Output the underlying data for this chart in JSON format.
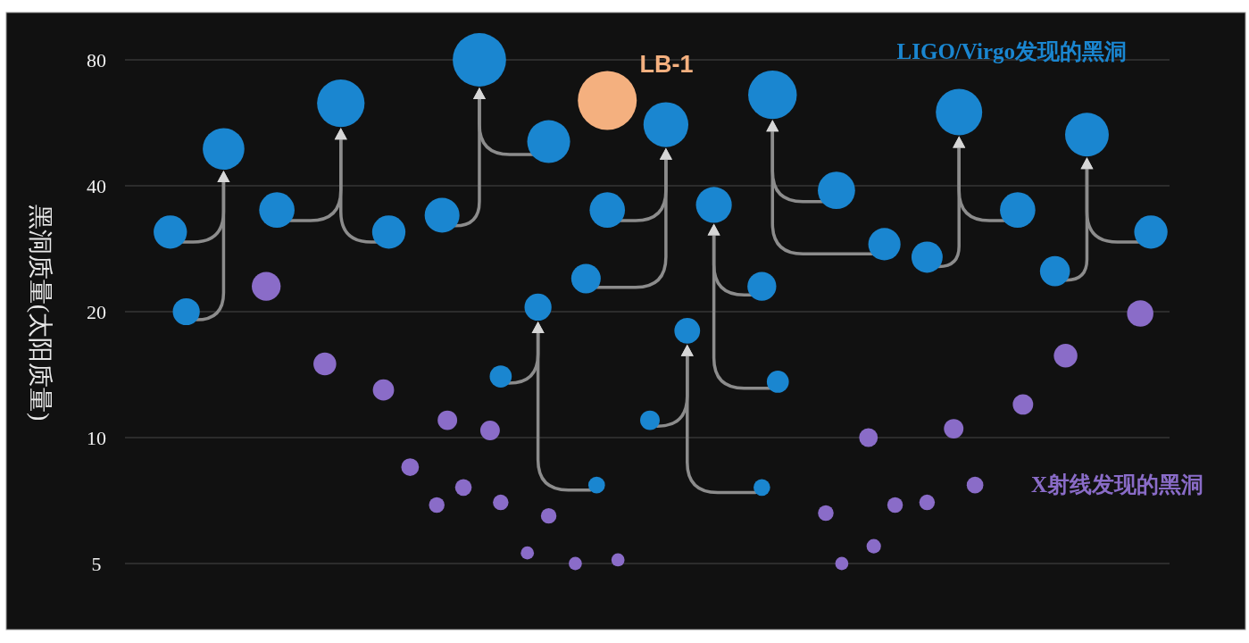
{
  "chart_data": {
    "type": "bubble",
    "log": true,
    "grid": "y",
    "tick_labels": "y",
    "marker": "circle",
    "ylabel": "黑洞质量(太阳质量)",
    "ylim": [
      5,
      80
    ],
    "yticks": [
      5,
      10,
      20,
      40,
      80
    ],
    "categories": [
      null,
      null,
      null,
      null,
      null,
      null,
      null,
      null,
      null,
      null,
      null,
      null,
      null,
      null,
      null,
      null,
      null,
      null,
      null,
      null,
      null,
      null,
      null,
      null,
      null,
      null,
      null,
      null,
      null,
      null,
      null,
      null,
      null,
      null,
      null,
      null,
      null,
      null,
      null,
      null,
      null,
      null,
      null,
      null,
      null,
      null,
      null,
      null,
      null,
      null,
      null,
      null,
      null,
      null,
      null,
      null,
      null,
      null,
      null,
      null,
      null,
      null,
      null,
      null,
      null,
      null,
      null,
      null,
      null,
      null,
      null,
      null,
      null,
      null,
      null,
      null,
      null,
      null,
      null,
      null,
      null,
      null,
      null,
      null,
      null,
      null,
      null,
      null,
      null,
      null,
      null,
      null,
      null,
      null,
      null,
      null,
      null,
      null,
      null,
      null,
      null,
      null,
      null,
      null,
      null,
      null,
      null,
      null,
      null,
      null,
      null,
      null,
      null,
      null,
      null,
      null,
      null,
      null,
      null,
      null,
      null,
      null,
      null,
      null,
      null,
      null,
      null,
      null,
      null,
      null,
      null,
      null,
      null,
      null,
      null,
      null,
      null,
      null,
      null,
      null,
      null,
      null,
      null,
      null,
      null,
      null,
      null,
      null,
      null,
      null,
      null,
      null,
      null,
      null,
      null,
      null,
      null,
      null,
      null,
      null,
      null,
      null,
      null,
      null,
      null,
      null,
      null,
      null,
      null,
      null,
      null,
      null,
      null,
      null,
      null,
      null,
      null,
      null,
      null,
      null,
      null,
      null,
      null,
      null,
      null,
      null,
      null,
      null,
      null,
      null,
      null,
      null,
      null,
      null,
      null,
      null
    ],
    "series": [
      {
        "name": "LIGO/Virgo发现的黑洞",
        "color": "#1a86d0",
        "values": [
          null,
          null,
          null,
          null,
          null,
          null,
          null,
          null,
          null,
          null,
          null,
          null,
          null,
          null,
          null,
          null,
          null,
          null,
          49,
          null,
          null,
          null,
          null,
          null,
          null,
          null,
          null,
          null,
          null,
          null,
          null,
          null,
          null,
          null,
          null,
          null,
          null,
          null,
          null,
          null,
          63,
          null,
          null,
          null,
          null,
          null,
          null,
          null,
          null,
          null,
          null,
          null,
          null,
          null,
          null,
          null,
          null,
          null,
          null,
          null,
          null,
          null,
          null,
          null,
          null,
          null,
          80,
          null,
          null,
          null,
          null,
          null,
          null,
          null,
          null,
          null,
          null,
          20.5,
          null,
          null,
          null,
          null,
          null,
          null,
          null,
          null,
          null,
          null,
          null,
          null,
          null,
          null,
          null,
          null,
          null,
          null,
          null,
          null,
          null,
          null,
          null,
          56,
          null,
          null,
          null,
          18,
          null,
          null,
          null,
          null,
          36,
          null,
          null,
          null,
          null,
          null,
          null,
          null,
          null,
          null,
          null,
          66,
          null,
          null,
          null,
          null,
          null,
          null,
          null,
          null,
          null,
          null,
          null,
          null,
          null,
          null,
          null,
          null,
          null,
          null,
          null,
          null,
          null,
          null,
          null,
          null,
          null,
          null,
          null,
          null,
          null,
          null,
          null,
          null,
          null,
          null,
          60,
          null,
          null,
          null,
          null,
          null,
          null,
          null,
          null,
          null,
          null,
          null,
          null,
          null,
          null,
          null,
          null,
          null,
          null,
          null,
          null,
          null,
          null,
          null,
          53,
          null,
          null,
          null,
          null,
          null,
          null,
          null,
          null,
          null,
          null,
          null,
          null,
          null,
          null,
          null
        ],
        "sizes": [
          null,
          null,
          null,
          null,
          null,
          null,
          null,
          null,
          null,
          null,
          null,
          null,
          null,
          null,
          null,
          null,
          null,
          null,
          0.5,
          null,
          null,
          null,
          null,
          null,
          null,
          null,
          null,
          null,
          null,
          null,
          null,
          null,
          null,
          null,
          null,
          null,
          null,
          null,
          null,
          null,
          0.65,
          null,
          null,
          null,
          null,
          null,
          null,
          null,
          null,
          null,
          null,
          null,
          null,
          null,
          null,
          null,
          null,
          null,
          null,
          null,
          null,
          null,
          null,
          null,
          null,
          null,
          0.82,
          null,
          null,
          null,
          null,
          null,
          null,
          null,
          null,
          null,
          null,
          0.21,
          null,
          null,
          null,
          null,
          null,
          null,
          null,
          null,
          null,
          null,
          null,
          null,
          null,
          null,
          null,
          null,
          null,
          null,
          null,
          null,
          null,
          null,
          null,
          0.58,
          null,
          null,
          null,
          0.19,
          null,
          null,
          null,
          null,
          0.37,
          null,
          null,
          null,
          null,
          null,
          null,
          null,
          null,
          null,
          null,
          0.68,
          null,
          null,
          null,
          null,
          null,
          null,
          null,
          null,
          null,
          null,
          null,
          null,
          null,
          null,
          null,
          null,
          null,
          null,
          null,
          null,
          null,
          null,
          null,
          null,
          null,
          null,
          null,
          null,
          null,
          null,
          null,
          null,
          null,
          null,
          0.62,
          null,
          null,
          null,
          null,
          null,
          null,
          null,
          null,
          null,
          null,
          null,
          null,
          null,
          null,
          null,
          null,
          null,
          null,
          null,
          null,
          null,
          null,
          null,
          0.55,
          null,
          null,
          null,
          null,
          null,
          null,
          null,
          null,
          null,
          null,
          null,
          null,
          null,
          null,
          null
        ]
      },
      {
        "color": "#1a86d0",
        "values": [
          null,
          null,
          null,
          null,
          null,
          null,
          null,
          null,
          31,
          null,
          null,
          null,
          null,
          null,
          null,
          null,
          null,
          null,
          null,
          null,
          null,
          null,
          null,
          null,
          null,
          null,
          null,
          null,
          35,
          null,
          null,
          null,
          null,
          null,
          null,
          null,
          null,
          null,
          null,
          null,
          null,
          null,
          null,
          null,
          null,
          null,
          null,
          null,
          null,
          null,
          null,
          null,
          null,
          null,
          null,
          null,
          null,
          null,
          null,
          34,
          null,
          null,
          null,
          null,
          null,
          null,
          null,
          null,
          null,
          null,
          14,
          null,
          null,
          null,
          null,
          null,
          null,
          null,
          null,
          null,
          null,
          null,
          null,
          null,
          null,
          null,
          24,
          null,
          null,
          null,
          null,
          null,
          null,
          null,
          null,
          null,
          null,
          null,
          11,
          null,
          null,
          null,
          null,
          null,
          null,
          null,
          null,
          null,
          null,
          null,
          null,
          null,
          null,
          null,
          null,
          null,
          null,
          null,
          null,
          23,
          null,
          null,
          null,
          null,
          null,
          null,
          null,
          null,
          null,
          null,
          null,
          null,
          null,
          39,
          null,
          null,
          null,
          null,
          null,
          null,
          null,
          null,
          null,
          null,
          null,
          null,
          null,
          null,
          null,
          null,
          27,
          null,
          null,
          null,
          null,
          null,
          null,
          null,
          null,
          null,
          null,
          null,
          null,
          null,
          null,
          null,
          null,
          null,
          null,
          null,
          null,
          null,
          null,
          null,
          25,
          null,
          null,
          null,
          null,
          null,
          null,
          null,
          null,
          null,
          null,
          null,
          null,
          null,
          null,
          null,
          null,
          null,
          null,
          null,
          null,
          null
        ],
        "sizes": [
          null,
          null,
          null,
          null,
          null,
          null,
          null,
          null,
          0.32,
          null,
          null,
          null,
          null,
          null,
          null,
          null,
          null,
          null,
          null,
          null,
          null,
          null,
          null,
          null,
          null,
          null,
          null,
          null,
          0.36,
          null,
          null,
          null,
          null,
          null,
          null,
          null,
          null,
          null,
          null,
          null,
          null,
          null,
          null,
          null,
          null,
          null,
          null,
          null,
          null,
          null,
          null,
          null,
          null,
          null,
          null,
          null,
          null,
          null,
          null,
          0.35,
          null,
          null,
          null,
          null,
          null,
          null,
          null,
          null,
          null,
          null,
          0.14,
          null,
          null,
          null,
          null,
          null,
          null,
          null,
          null,
          null,
          null,
          null,
          null,
          null,
          null,
          null,
          0.25,
          null,
          null,
          null,
          null,
          null,
          null,
          null,
          null,
          null,
          null,
          null,
          0.11,
          null,
          null,
          null,
          null,
          null,
          null,
          null,
          null,
          null,
          null,
          null,
          null,
          null,
          null,
          null,
          null,
          null,
          null,
          null,
          null,
          0.24,
          null,
          null,
          null,
          null,
          null,
          null,
          null,
          null,
          null,
          null,
          null,
          null,
          null,
          0.4,
          null,
          null,
          null,
          null,
          null,
          null,
          null,
          null,
          null,
          null,
          null,
          null,
          null,
          null,
          null,
          null,
          0.28,
          null,
          null,
          null,
          null,
          null,
          null,
          null,
          null,
          null,
          null,
          null,
          null,
          null,
          null,
          null,
          null,
          null,
          null,
          null,
          null,
          null,
          null,
          null,
          0.26,
          null,
          null,
          null,
          null,
          null,
          null,
          null,
          null,
          null,
          null,
          null,
          null,
          null,
          null,
          null,
          null,
          null,
          null,
          null,
          null,
          null
        ]
      },
      {
        "color": "#1a86d0",
        "values": [
          null,
          null,
          null,
          null,
          null,
          null,
          null,
          null,
          null,
          null,
          null,
          20,
          null,
          null,
          null,
          null,
          null,
          null,
          null,
          null,
          null,
          null,
          null,
          null,
          null,
          null,
          null,
          null,
          null,
          null,
          null,
          null,
          null,
          null,
          null,
          null,
          null,
          null,
          null,
          null,
          null,
          null,
          null,
          null,
          null,
          null,
          null,
          null,
          null,
          31,
          null,
          null,
          null,
          null,
          null,
          null,
          null,
          null,
          null,
          null,
          null,
          null,
          null,
          null,
          null,
          null,
          null,
          null,
          null,
          null,
          null,
          null,
          null,
          null,
          null,
          null,
          null,
          null,
          null,
          51,
          null,
          null,
          null,
          null,
          null,
          null,
          null,
          null,
          7.7,
          null,
          35,
          null,
          null,
          null,
          null,
          null,
          null,
          null,
          null,
          null,
          null,
          null,
          null,
          null,
          null,
          null,
          null,
          null,
          null,
          null,
          null,
          null,
          null,
          null,
          null,
          null,
          null,
          null,
          null,
          7.6,
          null,
          null,
          13.6,
          null,
          null,
          null,
          null,
          null,
          null,
          null,
          null,
          null,
          null,
          null,
          null,
          null,
          null,
          null,
          null,
          null,
          null,
          null,
          29,
          null,
          null,
          null,
          null,
          null,
          null,
          null,
          null,
          null,
          null,
          null,
          null,
          null,
          null,
          null,
          null,
          null,
          null,
          null,
          null,
          null,
          null,
          null,
          null,
          35,
          null,
          null,
          null,
          null,
          null,
          null,
          null,
          null,
          null,
          null,
          null,
          null,
          null,
          null,
          null,
          null,
          null,
          null,
          null,
          null,
          null,
          null,
          null,
          null,
          31,
          null,
          null,
          null
        ],
        "sizes": [
          null,
          null,
          null,
          null,
          null,
          null,
          null,
          null,
          null,
          null,
          null,
          0.21,
          null,
          null,
          null,
          null,
          null,
          null,
          null,
          null,
          null,
          null,
          null,
          null,
          null,
          null,
          null,
          null,
          null,
          null,
          null,
          null,
          null,
          null,
          null,
          null,
          null,
          null,
          null,
          null,
          null,
          null,
          null,
          null,
          null,
          null,
          null,
          null,
          null,
          0.32,
          null,
          null,
          null,
          null,
          null,
          null,
          null,
          null,
          null,
          null,
          null,
          null,
          null,
          null,
          null,
          null,
          null,
          null,
          null,
          null,
          null,
          null,
          null,
          null,
          null,
          null,
          null,
          null,
          null,
          0.53,
          null,
          null,
          null,
          null,
          null,
          null,
          null,
          null,
          0.08,
          null,
          0.36,
          null,
          null,
          null,
          null,
          null,
          null,
          null,
          null,
          null,
          null,
          null,
          null,
          null,
          null,
          null,
          null,
          null,
          null,
          null,
          null,
          null,
          null,
          null,
          null,
          null,
          null,
          null,
          null,
          0.08,
          null,
          null,
          0.14,
          null,
          null,
          null,
          null,
          null,
          null,
          null,
          null,
          null,
          null,
          null,
          null,
          null,
          null,
          null,
          null,
          null,
          null,
          null,
          0.3,
          null,
          null,
          null,
          null,
          null,
          null,
          null,
          null,
          null,
          null,
          null,
          null,
          null,
          null,
          null,
          null,
          null,
          null,
          null,
          null,
          null,
          null,
          null,
          null,
          0.36,
          null,
          null,
          null,
          null,
          null,
          null,
          null,
          null,
          null,
          null,
          null,
          null,
          null,
          null,
          null,
          null,
          null,
          null,
          null,
          null,
          null,
          null,
          null,
          null,
          0.32,
          null,
          null,
          null
        ]
      },
      {
        "name": "X射线发现的黑洞",
        "color": "#8a6cc8",
        "values": [
          null,
          null,
          null,
          null,
          null,
          null,
          null,
          null,
          null,
          null,
          null,
          null,
          null,
          null,
          null,
          null,
          null,
          null,
          null,
          null,
          null,
          null,
          null,
          null,
          null,
          null,
          23,
          null,
          null,
          null,
          null,
          null,
          null,
          null,
          null,
          null,
          null,
          15,
          null,
          null,
          null,
          null,
          null,
          null,
          null,
          null,
          null,
          null,
          13,
          null,
          null,
          null,
          null,
          8.5,
          null,
          null,
          null,
          null,
          6.9,
          null,
          11,
          null,
          null,
          7.6,
          null,
          null,
          null,
          null,
          10.4,
          null,
          7,
          null,
          null,
          null,
          null,
          5.3,
          null,
          null,
          null,
          6.5,
          null,
          null,
          null,
          null,
          5,
          null,
          null,
          null,
          null,
          null,
          null,
          null,
          5.1,
          null,
          null,
          null,
          null,
          null,
          null,
          null,
          null,
          null,
          null,
          null,
          null,
          null,
          null,
          null,
          null,
          null,
          null,
          null,
          null,
          null,
          null,
          null,
          null,
          null,
          null,
          null,
          null,
          null,
          null,
          null,
          null,
          null,
          null,
          null,
          null,
          null,
          null,
          6.6,
          null,
          null,
          5,
          null,
          null,
          null,
          null,
          10,
          5.5,
          null,
          null,
          null,
          6.9,
          null,
          null,
          null,
          null,
          null,
          7,
          null,
          null,
          null,
          null,
          10.5,
          null,
          null,
          null,
          7.7,
          null,
          null,
          null,
          null,
          null,
          null,
          null,
          null,
          12,
          null,
          null,
          null,
          null,
          null,
          null,
          null,
          15.7,
          null,
          null,
          null,
          null,
          null,
          null,
          null,
          null,
          null,
          null,
          null,
          null,
          null,
          19.8,
          null,
          null,
          null,
          null,
          null
        ],
        "sizes": [
          null,
          null,
          null,
          null,
          null,
          null,
          null,
          null,
          null,
          null,
          null,
          null,
          null,
          null,
          null,
          null,
          null,
          null,
          null,
          null,
          null,
          null,
          null,
          null,
          null,
          null,
          0.24,
          null,
          null,
          null,
          null,
          null,
          null,
          null,
          null,
          null,
          null,
          0.15,
          null,
          null,
          null,
          null,
          null,
          null,
          null,
          null,
          null,
          null,
          0.13,
          null,
          null,
          null,
          null,
          0.09,
          null,
          null,
          null,
          null,
          0.07,
          null,
          0.11,
          null,
          null,
          0.08,
          null,
          null,
          null,
          null,
          0.11,
          null,
          0.07,
          null,
          null,
          null,
          null,
          0.05,
          null,
          null,
          null,
          0.07,
          null,
          null,
          null,
          null,
          0.05,
          null,
          null,
          null,
          null,
          null,
          null,
          null,
          0.05,
          null,
          null,
          null,
          null,
          null,
          null,
          null,
          null,
          null,
          null,
          null,
          null,
          null,
          null,
          null,
          null,
          null,
          null,
          null,
          null,
          null,
          null,
          null,
          null,
          null,
          null,
          null,
          null,
          null,
          null,
          null,
          null,
          null,
          null,
          null,
          null,
          null,
          null,
          0.07,
          null,
          null,
          0.05,
          null,
          null,
          null,
          null,
          0.1,
          0.06,
          null,
          null,
          null,
          0.07,
          null,
          null,
          null,
          null,
          null,
          0.07,
          null,
          null,
          null,
          null,
          0.11,
          null,
          null,
          null,
          0.08,
          null,
          null,
          null,
          null,
          null,
          null,
          null,
          null,
          0.12,
          null,
          null,
          null,
          null,
          null,
          null,
          null,
          0.16,
          null,
          null,
          null,
          null,
          null,
          null,
          null,
          null,
          null,
          null,
          null,
          null,
          null,
          0.2,
          null,
          null,
          null,
          null,
          null
        ]
      },
      {
        "name": "LB-1",
        "color": "#f4b07f",
        "values": [
          null,
          null,
          null,
          null,
          null,
          null,
          null,
          null,
          null,
          null,
          null,
          null,
          null,
          null,
          null,
          null,
          null,
          null,
          null,
          null,
          null,
          null,
          null,
          null,
          null,
          null,
          null,
          null,
          null,
          null,
          null,
          null,
          null,
          null,
          null,
          null,
          null,
          null,
          null,
          null,
          null,
          null,
          null,
          null,
          null,
          null,
          null,
          null,
          null,
          null,
          null,
          null,
          null,
          null,
          null,
          null,
          null,
          null,
          null,
          null,
          null,
          null,
          null,
          null,
          null,
          null,
          null,
          null,
          null,
          null,
          null,
          null,
          null,
          null,
          null,
          null,
          null,
          null,
          null,
          null,
          null,
          null,
          null,
          null,
          null,
          null,
          null,
          null,
          null,
          null,
          64,
          null,
          null,
          null,
          null,
          null,
          null,
          null,
          null,
          null,
          null,
          null,
          null,
          null,
          null,
          null,
          null,
          null,
          null,
          null,
          null,
          null,
          null,
          null,
          null,
          null,
          null,
          null,
          null,
          null,
          null,
          null,
          null,
          null,
          null,
          null,
          null,
          null,
          null,
          null,
          null,
          null,
          null,
          null,
          null,
          null,
          null,
          null,
          null,
          null,
          null,
          null,
          null,
          null,
          null,
          null,
          null,
          null,
          null,
          null,
          null,
          null,
          null,
          null,
          null,
          null,
          null,
          null,
          null,
          null,
          null,
          null,
          null,
          null,
          null,
          null,
          null,
          null,
          null,
          null,
          null,
          null,
          null,
          null,
          null,
          null,
          null,
          null,
          null,
          null,
          null,
          null,
          null,
          null,
          null,
          null,
          null,
          null,
          null,
          null,
          null,
          null,
          null,
          null,
          null,
          null
        ],
        "sizes": [
          null,
          null,
          null,
          null,
          null,
          null,
          null,
          null,
          null,
          null,
          null,
          null,
          null,
          null,
          null,
          null,
          null,
          null,
          null,
          null,
          null,
          null,
          null,
          null,
          null,
          null,
          null,
          null,
          null,
          null,
          null,
          null,
          null,
          null,
          null,
          null,
          null,
          null,
          null,
          null,
          null,
          null,
          null,
          null,
          null,
          null,
          null,
          null,
          null,
          null,
          null,
          null,
          null,
          null,
          null,
          null,
          null,
          null,
          null,
          null,
          null,
          null,
          null,
          null,
          null,
          null,
          null,
          null,
          null,
          null,
          null,
          null,
          null,
          null,
          null,
          null,
          null,
          null,
          null,
          null,
          null,
          null,
          null,
          null,
          null,
          null,
          null,
          null,
          null,
          null,
          1,
          null,
          null,
          null,
          null,
          null,
          null,
          null,
          null,
          null,
          null,
          null,
          null,
          null,
          null,
          null,
          null,
          null,
          null,
          null,
          null,
          null,
          null,
          null,
          null,
          null,
          null,
          null,
          null,
          null,
          null,
          null,
          null,
          null,
          null,
          null,
          null,
          null,
          null,
          null,
          null,
          null,
          null,
          null,
          null,
          null,
          null,
          null,
          null,
          null,
          null,
          null,
          null,
          null,
          null,
          null,
          null,
          null,
          null,
          null,
          null,
          null,
          null,
          null,
          null,
          null,
          null,
          null,
          null,
          null,
          null,
          null,
          null,
          null,
          null,
          null,
          null,
          null,
          null,
          null,
          null,
          null,
          null,
          null,
          null,
          null,
          null,
          null,
          null,
          null,
          null,
          null,
          null,
          null,
          null,
          null,
          null,
          null,
          null,
          null,
          null,
          null,
          null,
          null,
          null,
          null
        ]
      }
    ]
  }
}
